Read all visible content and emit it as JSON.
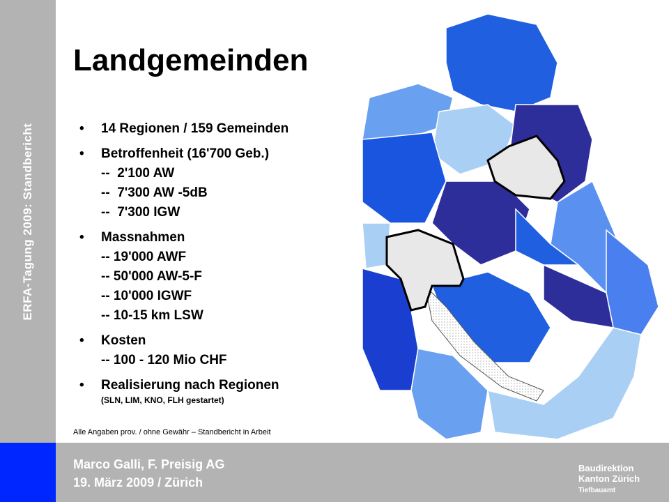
{
  "sidebar": {
    "label": "ERFA-Tagung 2009: Standbericht"
  },
  "title": "Landgemeinden",
  "bullets": [
    {
      "text": "14 Regionen / 159 Gemeinden"
    },
    {
      "text": "Betroffenheit (16'700 Geb.)",
      "sub": [
        "--  2'100 AW",
        "--  7'300 AW -5dB",
        "--  7'300 IGW"
      ]
    },
    {
      "text": "Massnahmen",
      "sub": [
        "-- 19'000 AWF",
        "-- 50'000 AW-5-F",
        "-- 10'000 IGWF",
        "-- 10-15 km LSW"
      ]
    },
    {
      "text": "Kosten",
      "sub": [
        "-- 100 - 120 Mio CHF"
      ]
    },
    {
      "text": "Realisierung nach Regionen",
      "note": "(SLN, LIM, KNO, FLH gestartet)"
    }
  ],
  "footnote": "Alle Angaben prov. / ohne Gewähr – Standbericht in Arbeit",
  "footer": {
    "author": "Marco Galli, F. Preisig AG",
    "date": "19. März 2009 / Zürich"
  },
  "logo": {
    "line1": "Baudirektion",
    "line2": "Kanton Zürich",
    "line3": "Tiefbauamt"
  }
}
